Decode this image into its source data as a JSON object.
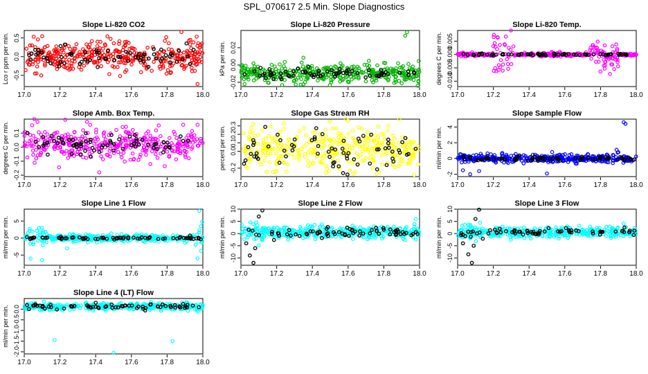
{
  "page_title": "SPL_070617  2.5 Min. Slope Diagnostics",
  "styles": {
    "pt_black": "#000000",
    "panel_border": "#000000"
  },
  "chart_data": [
    {
      "type": "scatter",
      "title": "Slope Li-820 CO2",
      "ylabel": "Lco r ppm per min.",
      "color": "#ff0000",
      "xlim": [
        17.0,
        18.0
      ],
      "ylim": [
        -0.8,
        0.7
      ],
      "xticks": [
        17.0,
        17.2,
        17.4,
        17.6,
        17.8,
        18.0
      ],
      "xtick_labels": [
        "17.0",
        "17.2",
        "17.4",
        "17.6",
        "17.8",
        "18.0"
      ],
      "yticks": [
        -0.5,
        0.0,
        0.5
      ],
      "ytick_labels": [
        "-0.5",
        "0.0",
        "0.5"
      ],
      "profile": {
        "base": 0.0,
        "noise": 0.2,
        "black_noise": 0.15,
        "outliers": [
          [
            17.88,
            0.66
          ],
          [
            17.97,
            -0.73
          ],
          [
            17.93,
            0.45
          ],
          [
            17.06,
            -0.45
          ]
        ]
      }
    },
    {
      "type": "scatter",
      "title": "Slope Li-820 Pressure",
      "ylabel": "kPa per min.",
      "color": "#00b400",
      "xlim": [
        17.0,
        18.0
      ],
      "ylim": [
        -0.025,
        0.04
      ],
      "xticks": [
        17.0,
        17.2,
        17.4,
        17.6,
        17.8,
        18.0
      ],
      "xtick_labels": [
        "17.0",
        "17.2",
        "17.4",
        "17.6",
        "17.8",
        "18.0"
      ],
      "yticks": [
        -0.02,
        0.0,
        0.02
      ],
      "ytick_labels": [
        "-0.02",
        "0.00",
        "0.02"
      ],
      "profile": {
        "base": -0.01,
        "noise": 0.005,
        "black_noise": 0.003,
        "outliers": [
          [
            17.93,
            0.038
          ],
          [
            17.92,
            0.034
          ],
          [
            17.02,
            -0.022
          ],
          [
            17.74,
            -0.02
          ],
          [
            17.99,
            -0.024
          ],
          [
            17.88,
            0.002
          ]
        ]
      }
    },
    {
      "type": "scatter",
      "title": "Slope Li-820 Temp.",
      "ylabel": "degrees C per min.",
      "color": "#ff00ff",
      "xlim": [
        17.0,
        18.0
      ],
      "ylim": [
        -0.012,
        0.009
      ],
      "xticks": [
        17.0,
        17.2,
        17.4,
        17.6,
        17.8,
        18.0
      ],
      "xtick_labels": [
        "17.0",
        "17.2",
        "17.4",
        "17.6",
        "17.8",
        "18.0"
      ],
      "yticks": [
        -0.01,
        -0.005,
        0.0,
        0.005
      ],
      "ytick_labels": [
        "-0.010",
        "-0.005",
        "0.000",
        "0.005"
      ],
      "profile": {
        "base": 0.0,
        "noise": 0.0003,
        "black_noise": 0.0002,
        "bursts": [
          [
            17.26,
            0.06,
            0.007
          ],
          [
            17.82,
            0.08,
            0.005
          ]
        ]
      }
    },
    {
      "type": "scatter",
      "title": "Slope Amb. Box Temp.",
      "ylabel": "degrees C per min.",
      "color": "#ff00ff",
      "xlim": [
        17.0,
        18.0
      ],
      "ylim": [
        -0.21,
        0.2
      ],
      "xticks": [
        17.0,
        17.2,
        17.4,
        17.6,
        17.8,
        18.0
      ],
      "xtick_labels": [
        "17.0",
        "17.2",
        "17.4",
        "17.6",
        "17.8",
        "18.0"
      ],
      "yticks": [
        -0.2,
        -0.1,
        0.0,
        0.1
      ],
      "ytick_labels": [
        "-0.2",
        "-0.1",
        "0.0",
        "0.1"
      ],
      "profile": {
        "base": 0.02,
        "noise": 0.06,
        "black_noise": 0.04,
        "outliers": [
          [
            17.97,
            0.16
          ],
          [
            17.89,
            0.16
          ],
          [
            17.42,
            -0.18
          ]
        ]
      }
    },
    {
      "type": "scatter",
      "title": "Slope Gas Stream RH",
      "ylabel": "percent per min.",
      "color": "#ffff00",
      "xlim": [
        17.0,
        18.0
      ],
      "ylim": [
        -0.3,
        0.38
      ],
      "xticks": [
        17.0,
        17.2,
        17.4,
        17.6,
        17.8,
        18.0
      ],
      "xtick_labels": [
        "17.0",
        "17.2",
        "17.4",
        "17.6",
        "17.8",
        "18.0"
      ],
      "yticks": [
        -0.2,
        0.0,
        0.1,
        0.2,
        0.3
      ],
      "ytick_labels": [
        "-0.2",
        "0.0",
        "0.1",
        "0.2",
        "0.3"
      ],
      "profile": {
        "base": 0.02,
        "noise": 0.12,
        "black_noise": 0.12,
        "outliers": [
          [
            17.6,
            0.36
          ],
          [
            17.24,
            0.33
          ],
          [
            17.97,
            -0.28
          ]
        ]
      }
    },
    {
      "type": "scatter",
      "title": "Slope Sample Flow",
      "ylabel": "ml/min per min.",
      "color": "#0000ff",
      "xlim": [
        17.0,
        18.0
      ],
      "ylim": [
        -2.3,
        5.0
      ],
      "xticks": [
        17.0,
        17.2,
        17.4,
        17.6,
        17.8,
        18.0
      ],
      "xtick_labels": [
        "17.0",
        "17.2",
        "17.4",
        "17.6",
        "17.8",
        "18.0"
      ],
      "yticks": [
        -2,
        0,
        2,
        4
      ],
      "ytick_labels": [
        "-2",
        "0",
        "2",
        "4"
      ],
      "profile": {
        "base": 0.0,
        "noise": 0.25,
        "black_noise": 0.15,
        "outliers": [
          [
            17.93,
            4.6
          ],
          [
            17.94,
            4.4
          ],
          [
            17.03,
            -1.5
          ],
          [
            17.07,
            -2.0
          ],
          [
            17.12,
            -1.6
          ],
          [
            17.5,
            -1.9
          ],
          [
            17.89,
            1.1
          ],
          [
            17.9,
            0.8
          ]
        ]
      }
    },
    {
      "type": "scatter",
      "title": "Slope Line 1 Flow",
      "ylabel": "ml/min per min.",
      "color": "#00ffff",
      "xlim": [
        17.0,
        18.0
      ],
      "ylim": [
        -8.0,
        8.5
      ],
      "xticks": [
        17.0,
        17.2,
        17.4,
        17.6,
        17.8,
        18.0
      ],
      "xtick_labels": [
        "17.0",
        "17.2",
        "17.4",
        "17.6",
        "17.8",
        "18.0"
      ],
      "yticks": [
        -5,
        0,
        5
      ],
      "ytick_labels": [
        "-5",
        "0",
        "5"
      ],
      "profile": {
        "base": 0.0,
        "noise": 0.5,
        "black_noise": 0.2,
        "bursts": [
          [
            17.07,
            0.05,
            3.5
          ],
          [
            17.98,
            0.03,
            4.0
          ]
        ],
        "outliers": [
          [
            17.1,
            -6.5
          ],
          [
            17.97,
            -6.0
          ],
          [
            17.98,
            8.0
          ],
          [
            17.24,
            -3.0
          ]
        ]
      }
    },
    {
      "type": "scatter",
      "title": "Slope Line 2 Flow",
      "ylabel": "ml/min per min.",
      "color": "#00ffff",
      "xlim": [
        17.0,
        18.0
      ],
      "ylim": [
        -13.0,
        10.0
      ],
      "xticks": [
        17.0,
        17.2,
        17.4,
        17.6,
        17.8,
        18.0
      ],
      "xtick_labels": [
        "17.0",
        "17.2",
        "17.4",
        "17.6",
        "17.8",
        "18.0"
      ],
      "yticks": [
        -10,
        -5,
        0,
        5,
        10
      ],
      "ytick_labels": [
        "-10",
        "-5",
        "0",
        "5",
        "10"
      ],
      "profile": {
        "base": 0.5,
        "noise": 1.2,
        "black_noise": 1.0,
        "bursts": [
          [
            17.08,
            0.05,
            4.0
          ]
        ],
        "black_outliers": [
          [
            17.03,
            -4.0
          ],
          [
            17.05,
            -9.0
          ],
          [
            17.07,
            -12.0
          ],
          [
            17.08,
            -6.0
          ],
          [
            17.12,
            9.5
          ],
          [
            17.1,
            7.0
          ]
        ],
        "outliers": [
          [
            17.98,
            6.0
          ],
          [
            17.98,
            -2.5
          ]
        ]
      }
    },
    {
      "type": "scatter",
      "title": "Slope Line 3 Flow",
      "ylabel": "ml/min per min.",
      "color": "#00ffff",
      "xlim": [
        17.0,
        18.0
      ],
      "ylim": [
        -13.0,
        10.0
      ],
      "xticks": [
        17.0,
        17.2,
        17.4,
        17.6,
        17.8,
        18.0
      ],
      "xtick_labels": [
        "17.0",
        "17.2",
        "17.4",
        "17.6",
        "17.8",
        "18.0"
      ],
      "yticks": [
        -10,
        -5,
        0,
        5,
        10
      ],
      "ytick_labels": [
        "-10",
        "-5",
        "0",
        "5",
        "10"
      ],
      "profile": {
        "base": 0.5,
        "noise": 1.0,
        "black_noise": 0.8,
        "bursts": [
          [
            17.08,
            0.05,
            4.0
          ]
        ],
        "black_outliers": [
          [
            17.03,
            -4.0
          ],
          [
            17.06,
            -8.5
          ],
          [
            17.08,
            -12.0
          ],
          [
            17.09,
            -5.0
          ],
          [
            17.12,
            9.8
          ],
          [
            17.1,
            6.0
          ]
        ],
        "outliers": [
          [
            17.93,
            4.0
          ]
        ]
      }
    },
    {
      "type": "scatter",
      "title": "Slope Line 4 (LT) Flow",
      "ylabel": "ml/min per min.",
      "color": "#00ffff",
      "xlim": [
        17.0,
        18.0
      ],
      "ylim": [
        -2.1,
        0.5
      ],
      "xticks": [
        17.0,
        17.2,
        17.4,
        17.6,
        17.8,
        18.0
      ],
      "xtick_labels": [
        "17.0",
        "17.2",
        "17.4",
        "17.6",
        "17.8",
        "18.0"
      ],
      "yticks": [
        -2.0,
        -1.5,
        -1.0,
        -0.5,
        0.0
      ],
      "ytick_labels": [
        "-2.0",
        "-1.5",
        "-1.0",
        "-0.5",
        "0.0"
      ],
      "profile": {
        "base": 0.12,
        "noise": 0.08,
        "black_noise": 0.06,
        "outliers": [
          [
            17.17,
            -1.45
          ],
          [
            17.83,
            -1.5
          ],
          [
            17.5,
            -2.05
          ],
          [
            17.11,
            0.35
          ]
        ]
      }
    }
  ]
}
